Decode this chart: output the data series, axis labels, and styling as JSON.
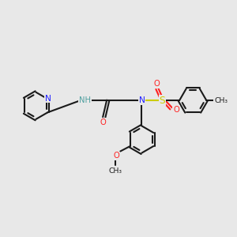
{
  "bg": "#e8e8e8",
  "bc": "#1a1a1a",
  "Nc": "#2020ff",
  "Oc": "#ff2020",
  "Sc": "#cccc00",
  "NHc": "#50a0a0",
  "figsize": [
    3.0,
    3.0
  ],
  "dpi": 100,
  "rr": 0.58,
  "lw": 1.5,
  "fs": 7.2,
  "xlim": [
    0,
    10
  ],
  "ylim": [
    0,
    10
  ]
}
